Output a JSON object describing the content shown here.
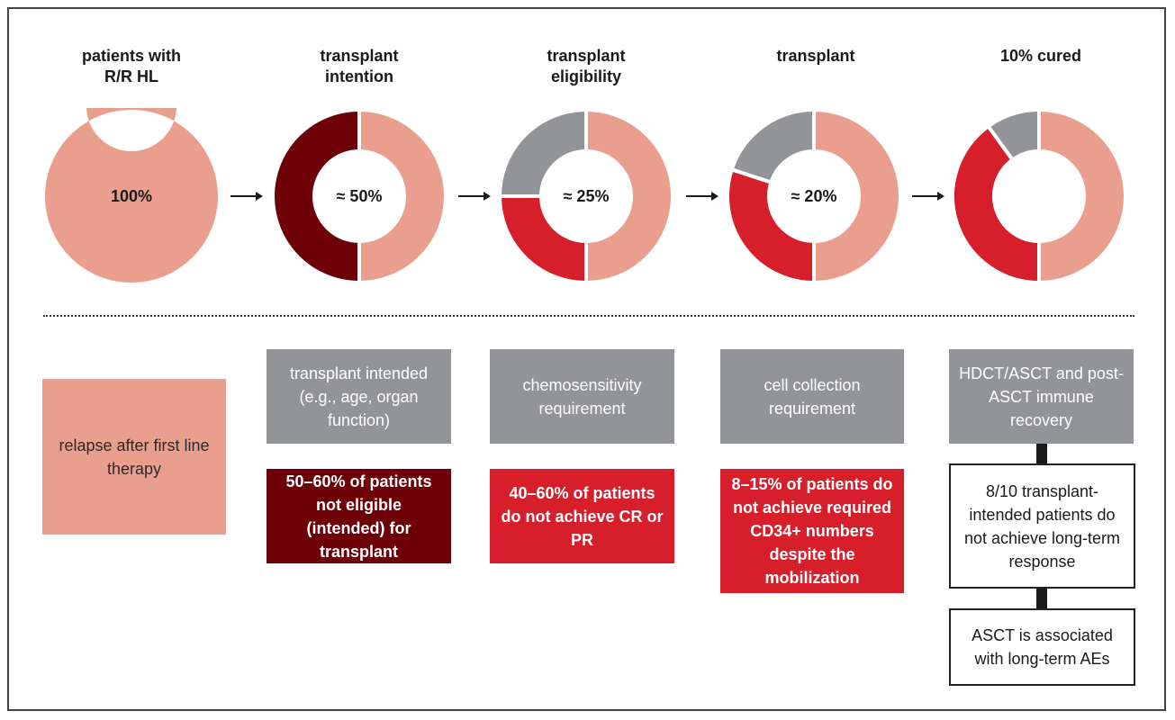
{
  "colors": {
    "peach": "#ea9f8e",
    "maroon": "#6e0008",
    "red": "#d71e2b",
    "gray": "#929497"
  },
  "stages": [
    {
      "title_line1": "patients with",
      "title_line2": "R/R HL",
      "center": "100%",
      "segments": [
        {
          "value": 100,
          "color": "#ea9f8e"
        }
      ]
    },
    {
      "title_line1": "transplant",
      "title_line2": "intention",
      "center": "≈ 50%",
      "segments": [
        {
          "value": 50,
          "color": "#ea9f8e"
        },
        {
          "value": 50,
          "color": "#6e0008"
        }
      ]
    },
    {
      "title_line1": "transplant",
      "title_line2": "eligibility",
      "center": "≈ 25%",
      "segments": [
        {
          "value": 50,
          "color": "#ea9f8e"
        },
        {
          "value": 25,
          "color": "#d71e2b"
        },
        {
          "value": 25,
          "color": "#929497"
        }
      ]
    },
    {
      "title_line1": "transplant",
      "title_line2": "",
      "center": "≈ 20%",
      "segments": [
        {
          "value": 50,
          "color": "#ea9f8e"
        },
        {
          "value": 30,
          "color": "#d71e2b"
        },
        {
          "value": 20,
          "color": "#929497"
        }
      ]
    },
    {
      "title_line1": "10% cured",
      "title_line2": "",
      "center": "",
      "segments": [
        {
          "value": 50,
          "color": "#ea9f8e"
        },
        {
          "value": 40,
          "color": "#d71e2b"
        },
        {
          "value": 10,
          "color": "#929497"
        }
      ]
    }
  ],
  "boxes": {
    "relapse": "relapse after first line therapy",
    "intended": "transplant intended (e.g., age, organ function)",
    "not_eligible": "50–60% of patients not eligible (intended) for transplant",
    "chemo": "chemosensitivity requirement",
    "no_cr_pr": "40–60% of patients do not achieve CR or PR",
    "cell_collection": "cell collection requirement",
    "cd34": "8–15% of patients do not achieve required CD34+ numbers despite the mobilization",
    "hdct": "HDCT/ASCT and post-ASCT immune recovery",
    "long_term_response": "8/10 transplant-intended patients do not achieve long-term response",
    "asct_aes": "ASCT is associated with long-term AEs"
  }
}
